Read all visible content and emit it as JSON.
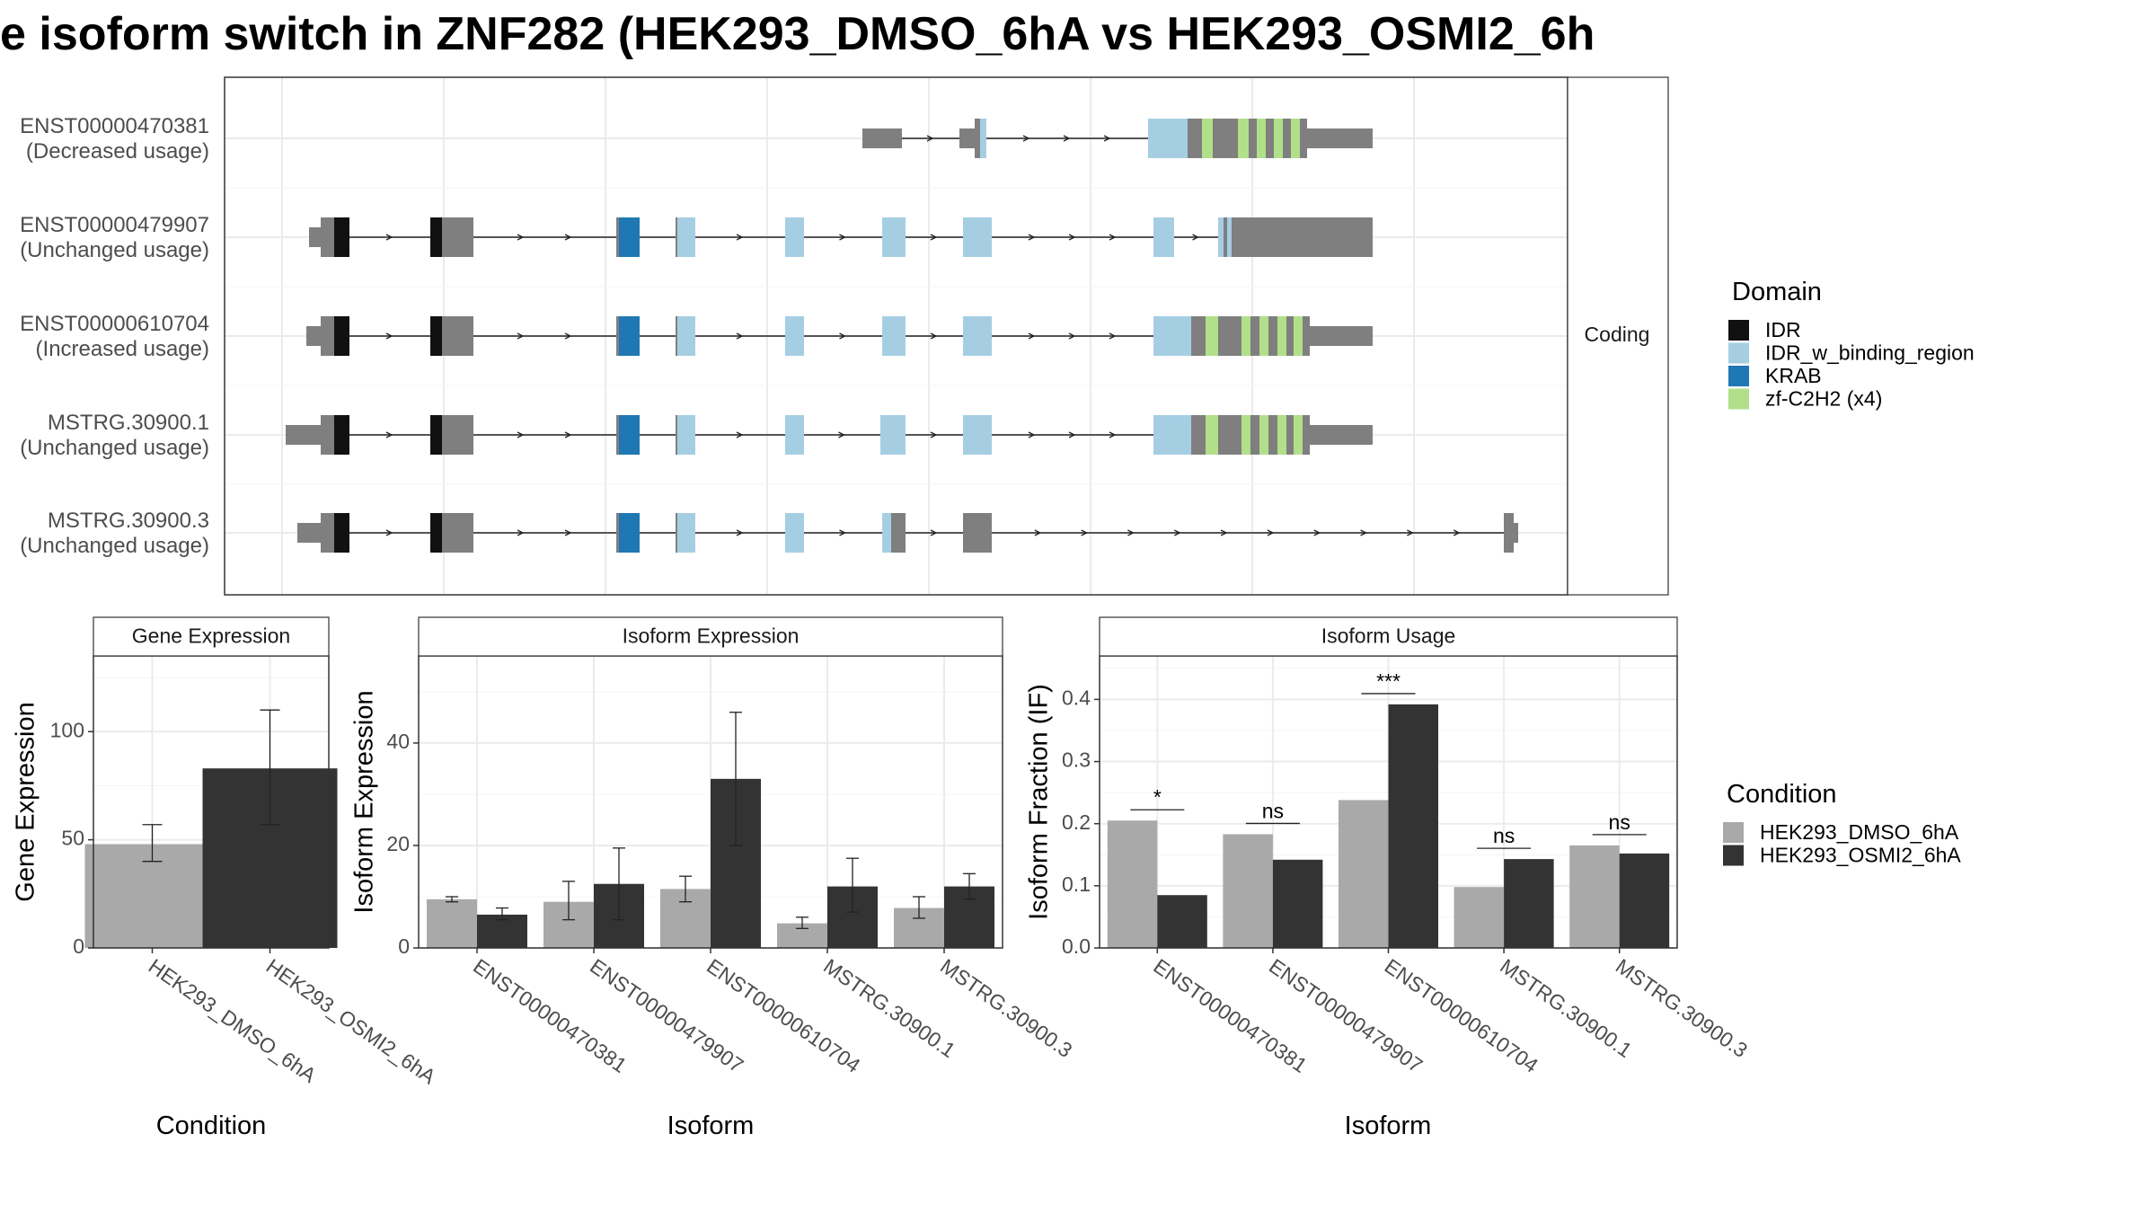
{
  "title": "e isoform switch in ZNF282 (HEK293_DMSO_6hA vs HEK293_OSMI2_6h",
  "structure": {
    "strip_label": "Coding",
    "isoforms": [
      {
        "id": "ENST00000470381",
        "usage": "(Decreased usage)"
      },
      {
        "id": "ENST00000479907",
        "usage": "(Unchanged usage)"
      },
      {
        "id": "ENST00000610704",
        "usage": "(Increased usage)"
      },
      {
        "id": "MSTRG.30900.1",
        "usage": "(Unchanged usage)"
      },
      {
        "id": "MSTRG.30900.3",
        "usage": "(Unchanged usage)"
      }
    ]
  },
  "domain_legend": {
    "title": "Domain",
    "items": [
      {
        "label": "IDR",
        "color": "#111111"
      },
      {
        "label": "IDR_w_binding_region",
        "color": "#a6cee3"
      },
      {
        "label": "KRAB",
        "color": "#1f78b4"
      },
      {
        "label": "zf-C2H2 (x4)",
        "color": "#b2df8a"
      }
    ]
  },
  "condition_legend": {
    "title": "Condition",
    "items": [
      {
        "label": "HEK293_DMSO_6hA",
        "color": "#a9a9a9"
      },
      {
        "label": "HEK293_OSMI2_6hA",
        "color": "#333333"
      }
    ]
  },
  "chart_data": [
    {
      "type": "bar",
      "title": "Gene Expression",
      "xlabel": "Condition",
      "ylabel": "Gene Expression",
      "ylim": [
        0,
        135
      ],
      "yticks": [
        0,
        50,
        100
      ],
      "categories": [
        "HEK293_DMSO_6hA",
        "HEK293_OSMI2_6hA"
      ],
      "values": [
        48,
        83
      ],
      "error_low": [
        40,
        57
      ],
      "error_high": [
        57,
        110
      ]
    },
    {
      "type": "bar",
      "title": "Isoform Expression",
      "xlabel": "Isoform",
      "ylabel": "Isoform Expression",
      "ylim": [
        0,
        57
      ],
      "yticks": [
        0,
        20,
        40
      ],
      "categories": [
        "ENST00000470381",
        "ENST00000479907",
        "ENST00000610704",
        "MSTRG.30900.1",
        "MSTRG.30900.3"
      ],
      "series": [
        {
          "name": "HEK293_DMSO_6hA",
          "values": [
            9.5,
            9,
            11.5,
            4.8,
            7.8
          ],
          "error_low": [
            9,
            5.5,
            9,
            3.8,
            5.8
          ],
          "error_high": [
            10,
            13,
            14,
            6,
            10
          ]
        },
        {
          "name": "HEK293_OSMI2_6hA",
          "values": [
            6.5,
            12.5,
            33,
            12,
            12
          ],
          "error_low": [
            5.5,
            5.5,
            20,
            7,
            9.5
          ],
          "error_high": [
            7.8,
            19.5,
            46,
            17.5,
            14.5
          ]
        }
      ]
    },
    {
      "type": "bar",
      "title": "Isoform Usage",
      "xlabel": "Isoform",
      "ylabel": "Isoform Fraction (IF)",
      "ylim": [
        0,
        0.47
      ],
      "yticks": [
        "0.0",
        "0.1",
        "0.2",
        "0.3",
        "0.4"
      ],
      "categories": [
        "ENST00000470381",
        "ENST00000479907",
        "ENST00000610704",
        "MSTRG.30900.1",
        "MSTRG.30900.3"
      ],
      "series": [
        {
          "name": "HEK293_DMSO_6hA",
          "values": [
            0.205,
            0.183,
            0.238,
            0.098,
            0.165
          ]
        },
        {
          "name": "HEK293_OSMI2_6hA",
          "values": [
            0.085,
            0.142,
            0.392,
            0.143,
            0.152
          ]
        }
      ],
      "significance": [
        "*",
        "ns",
        "***",
        "ns",
        "ns"
      ]
    }
  ]
}
